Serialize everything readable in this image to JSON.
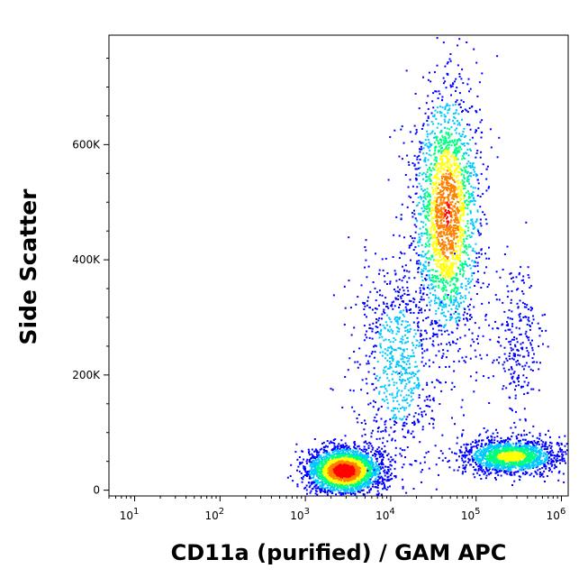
{
  "chart_data": {
    "type": "scatter",
    "subtype": "flow-cytometry density dot plot",
    "xlabel": "CD11a (purified) / GAM APC",
    "ylabel": "Side Scatter",
    "x_scale": "log",
    "xlim": [
      5,
      1200000
    ],
    "ylim": [
      -10000,
      790000
    ],
    "x_ticks": [
      {
        "base": "10",
        "exp": "1",
        "value": 10
      },
      {
        "base": "10",
        "exp": "2",
        "value": 100
      },
      {
        "base": "10",
        "exp": "3",
        "value": 1000
      },
      {
        "base": "10",
        "exp": "4",
        "value": 10000
      },
      {
        "base": "10",
        "exp": "5",
        "value": 100000
      },
      {
        "base": "10",
        "exp": "6",
        "value": 1000000
      }
    ],
    "y_ticks": [
      {
        "label": "0",
        "value": 0
      },
      {
        "label": "200K",
        "value": 200000
      },
      {
        "label": "400K",
        "value": 400000
      },
      {
        "label": "600K",
        "value": 600000
      }
    ],
    "grid": false,
    "legend": "none",
    "colormap": [
      "#0000ff",
      "#00c8ff",
      "#00ff80",
      "#ffff00",
      "#ff8000",
      "#ff0000"
    ],
    "populations": [
      {
        "center_x": 2800,
        "center_y": 35000,
        "spread_log_x": 0.22,
        "spread_y": 20000,
        "weight": 1.0
      },
      {
        "center_x": 45000,
        "center_y": 480000,
        "spread_log_x": 0.2,
        "spread_y": 110000,
        "weight": 0.85
      },
      {
        "center_x": 250000,
        "center_y": 60000,
        "spread_log_x": 0.28,
        "spread_y": 15000,
        "weight": 0.6
      },
      {
        "center_x": 12000,
        "center_y": 220000,
        "spread_log_x": 0.25,
        "spread_y": 90000,
        "weight": 0.3
      },
      {
        "center_x": 300000,
        "center_y": 250000,
        "spread_log_x": 0.15,
        "spread_y": 70000,
        "weight": 0.1
      }
    ]
  }
}
